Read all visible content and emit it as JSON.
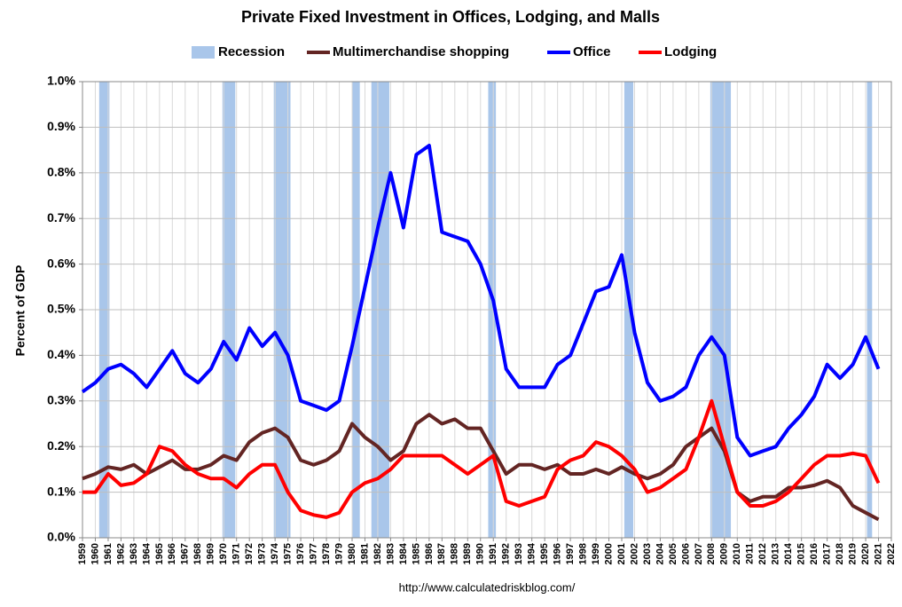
{
  "chart_data": {
    "type": "line",
    "title": "Private Fixed Investment in Offices, Lodging, and Malls",
    "y_label": "Percent of GDP",
    "source": "http://www.calculatedriskblog.com/",
    "recession_name": "Recession",
    "recession_color": "#a9c6ea",
    "recessions": [
      {
        "start": 1960.3,
        "end": 1961.1
      },
      {
        "start": 1969.9,
        "end": 1970.9
      },
      {
        "start": 1973.9,
        "end": 1975.2
      },
      {
        "start": 1980.0,
        "end": 1980.6
      },
      {
        "start": 1981.5,
        "end": 1982.9
      },
      {
        "start": 1990.6,
        "end": 1991.2
      },
      {
        "start": 2001.2,
        "end": 2001.9
      },
      {
        "start": 2007.9,
        "end": 2009.5
      },
      {
        "start": 2020.1,
        "end": 2020.5
      }
    ],
    "x": [
      1959,
      1960,
      1961,
      1962,
      1963,
      1964,
      1965,
      1966,
      1967,
      1968,
      1969,
      1970,
      1971,
      1972,
      1973,
      1974,
      1975,
      1976,
      1977,
      1978,
      1979,
      1980,
      1981,
      1982,
      1983,
      1984,
      1985,
      1986,
      1987,
      1988,
      1989,
      1990,
      1991,
      1992,
      1993,
      1994,
      1995,
      1996,
      1997,
      1998,
      1999,
      2000,
      2001,
      2002,
      2003,
      2004,
      2005,
      2006,
      2007,
      2008,
      2009,
      2010,
      2011,
      2012,
      2013,
      2014,
      2015,
      2016,
      2017,
      2018,
      2019,
      2020,
      2021
    ],
    "series": [
      {
        "name": "Multimerchandise shopping",
        "color": "#632523",
        "values": [
          0.13,
          0.14,
          0.155,
          0.15,
          0.16,
          0.14,
          0.155,
          0.17,
          0.15,
          0.15,
          0.16,
          0.18,
          0.17,
          0.21,
          0.23,
          0.24,
          0.22,
          0.17,
          0.16,
          0.17,
          0.19,
          0.25,
          0.22,
          0.2,
          0.17,
          0.19,
          0.25,
          0.27,
          0.25,
          0.26,
          0.24,
          0.24,
          0.19,
          0.14,
          0.16,
          0.16,
          0.15,
          0.16,
          0.14,
          0.14,
          0.15,
          0.14,
          0.155,
          0.14,
          0.13,
          0.14,
          0.16,
          0.2,
          0.22,
          0.24,
          0.19,
          0.1,
          0.08,
          0.09,
          0.09,
          0.11,
          0.11,
          0.115,
          0.125,
          0.11,
          0.07,
          0.055,
          0.04
        ]
      },
      {
        "name": "Office",
        "color": "#0000ff",
        "values": [
          0.32,
          0.34,
          0.37,
          0.38,
          0.36,
          0.33,
          0.37,
          0.41,
          0.36,
          0.34,
          0.37,
          0.43,
          0.39,
          0.46,
          0.42,
          0.45,
          0.4,
          0.3,
          0.29,
          0.28,
          0.3,
          0.42,
          0.55,
          0.68,
          0.8,
          0.68,
          0.84,
          0.86,
          0.67,
          0.66,
          0.65,
          0.6,
          0.52,
          0.37,
          0.33,
          0.33,
          0.33,
          0.38,
          0.4,
          0.47,
          0.54,
          0.55,
          0.62,
          0.45,
          0.34,
          0.3,
          0.31,
          0.33,
          0.4,
          0.44,
          0.4,
          0.22,
          0.18,
          0.19,
          0.2,
          0.24,
          0.27,
          0.31,
          0.38,
          0.35,
          0.38,
          0.44,
          0.37
        ]
      },
      {
        "name": "Lodging",
        "color": "#ff0000",
        "values": [
          0.1,
          0.1,
          0.14,
          0.115,
          0.12,
          0.14,
          0.2,
          0.19,
          0.16,
          0.14,
          0.13,
          0.13,
          0.11,
          0.14,
          0.16,
          0.16,
          0.1,
          0.06,
          0.05,
          0.045,
          0.055,
          0.1,
          0.12,
          0.13,
          0.15,
          0.18,
          0.18,
          0.18,
          0.18,
          0.16,
          0.14,
          0.16,
          0.18,
          0.08,
          0.07,
          0.08,
          0.09,
          0.15,
          0.17,
          0.18,
          0.21,
          0.2,
          0.18,
          0.15,
          0.1,
          0.11,
          0.13,
          0.15,
          0.22,
          0.3,
          0.2,
          0.1,
          0.07,
          0.07,
          0.08,
          0.1,
          0.13,
          0.16,
          0.18,
          0.18,
          0.185,
          0.18,
          0.12
        ]
      }
    ],
    "xlim": [
      1959,
      2022
    ],
    "xticks": [
      1959,
      1960,
      1961,
      1962,
      1963,
      1964,
      1965,
      1966,
      1967,
      1968,
      1969,
      1970,
      1971,
      1972,
      1973,
      1974,
      1975,
      1976,
      1977,
      1978,
      1979,
      1980,
      1981,
      1982,
      1983,
      1984,
      1985,
      1986,
      1987,
      1988,
      1989,
      1990,
      1991,
      1992,
      1993,
      1994,
      1995,
      1996,
      1997,
      1998,
      1999,
      2000,
      2001,
      2002,
      2003,
      2004,
      2005,
      2006,
      2007,
      2008,
      2009,
      2010,
      2011,
      2012,
      2013,
      2014,
      2015,
      2016,
      2017,
      2018,
      2019,
      2020,
      2021,
      2022
    ],
    "ylim": [
      0,
      1.0
    ],
    "yticks": [
      {
        "value": 0,
        "label": "0.0%"
      },
      {
        "value": 0.1,
        "label": "0.1%"
      },
      {
        "value": 0.2,
        "label": "0.2%"
      },
      {
        "value": 0.3,
        "label": "0.3%"
      },
      {
        "value": 0.4,
        "label": "0.4%"
      },
      {
        "value": 0.5,
        "label": "0.5%"
      },
      {
        "value": 0.6,
        "label": "0.6%"
      },
      {
        "value": 0.7,
        "label": "0.7%"
      },
      {
        "value": 0.8,
        "label": "0.8%"
      },
      {
        "value": 0.9,
        "label": "0.9%"
      },
      {
        "value": 1.0,
        "label": "1.0%"
      }
    ],
    "grid": true
  }
}
